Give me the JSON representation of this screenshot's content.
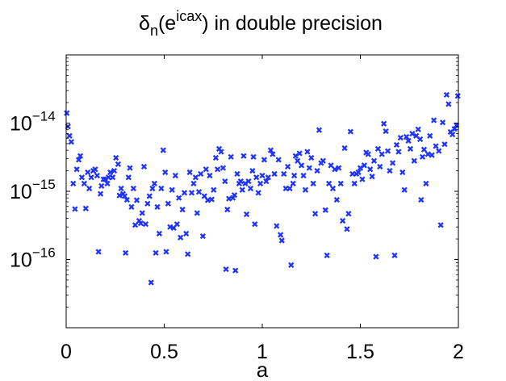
{
  "chart_data": {
    "type": "scatter",
    "title": {
      "base": "δ",
      "base_sub": "n",
      "mid": "(e",
      "mid_sup": "icax",
      "tail": ") in double precision"
    },
    "xlabel": "a",
    "ylabel": "",
    "xlim": [
      0,
      2
    ],
    "ylim": [
      1e-17,
      1e-13
    ],
    "y_scale": "log",
    "grid": false,
    "legend": "none",
    "x_ticks": [
      {
        "value": 0,
        "label": "0"
      },
      {
        "value": 0.5,
        "label": "0.5"
      },
      {
        "value": 1,
        "label": "1"
      },
      {
        "value": 1.5,
        "label": "1.5"
      },
      {
        "value": 2,
        "label": "2"
      }
    ],
    "y_ticks": [
      {
        "value": 1e-14,
        "mantissa": "10",
        "exponent": "−14"
      },
      {
        "value": 1e-15,
        "mantissa": "10",
        "exponent": "−15"
      },
      {
        "value": 1e-16,
        "mantissa": "10",
        "exponent": "−16"
      }
    ],
    "marker": "x",
    "color": "#1f33ff",
    "points": [
      [
        0.003,
        1.4e-14
      ],
      [
        0.009,
        8.9e-15
      ],
      [
        0.017,
        6.5e-15
      ],
      [
        0.026,
        5.3e-15
      ],
      [
        0.036,
        1.3e-15
      ],
      [
        0.045,
        5.5e-16
      ],
      [
        0.054,
        2.1e-15
      ],
      [
        0.064,
        2.9e-15
      ],
      [
        0.072,
        3.3e-15
      ],
      [
        0.08,
        1.6e-15
      ],
      [
        0.092,
        1.3e-15
      ],
      [
        0.1,
        5.6e-16
      ],
      [
        0.11,
        1.9e-15
      ],
      [
        0.118,
        1.1e-15
      ],
      [
        0.128,
        1.6e-15
      ],
      [
        0.138,
        2e-15
      ],
      [
        0.148,
        2.1e-15
      ],
      [
        0.158,
        1.7e-15
      ],
      [
        0.165,
        1.3e-16
      ],
      [
        0.175,
        9.2e-16
      ],
      [
        0.18,
        1.2e-15
      ],
      [
        0.19,
        1.5e-15
      ],
      [
        0.2,
        1.5e-15
      ],
      [
        0.21,
        1.3e-15
      ],
      [
        0.216,
        1.6e-15
      ],
      [
        0.225,
        1.9e-15
      ],
      [
        0.237,
        1.6e-15
      ],
      [
        0.245,
        2e-15
      ],
      [
        0.254,
        3.1e-15
      ],
      [
        0.265,
        2.5e-15
      ],
      [
        0.272,
        8.7e-16
      ],
      [
        0.28,
        1.1e-15
      ],
      [
        0.29,
        9.2e-16
      ],
      [
        0.298,
        8.5e-16
      ],
      [
        0.303,
        1.25e-16
      ],
      [
        0.31,
        7.5e-16
      ],
      [
        0.318,
        1.6e-15
      ],
      [
        0.325,
        2.2e-15
      ],
      [
        0.333,
        5.9e-16
      ],
      [
        0.343,
        1.1e-15
      ],
      [
        0.352,
        3.2e-16
      ],
      [
        0.36,
        7.4e-16
      ],
      [
        0.372,
        3.7e-16
      ],
      [
        0.38,
        3.4e-16
      ],
      [
        0.388,
        4.8e-16
      ],
      [
        0.397,
        2.3e-15
      ],
      [
        0.405,
        3.3e-16
      ],
      [
        0.415,
        6.6e-16
      ],
      [
        0.425,
        8.5e-16
      ],
      [
        0.433,
        4.6e-17
      ],
      [
        0.44,
        1.1e-15
      ],
      [
        0.45,
        1.3e-15
      ],
      [
        0.457,
        1.25e-16
      ],
      [
        0.465,
        5.9e-16
      ],
      [
        0.475,
        2.4e-16
      ],
      [
        0.485,
        1.1e-15
      ],
      [
        0.495,
        4e-15
      ],
      [
        0.505,
        1.9e-15
      ],
      [
        0.51,
        1.3e-16
      ],
      [
        0.52,
        6.6e-16
      ],
      [
        0.53,
        3e-16
      ],
      [
        0.54,
        1.05e-15
      ],
      [
        0.548,
        2.9e-16
      ],
      [
        0.557,
        1.7e-15
      ],
      [
        0.565,
        3.3e-16
      ],
      [
        0.575,
        8e-16
      ],
      [
        0.583,
        2.1e-16
      ],
      [
        0.593,
        5.4e-16
      ],
      [
        0.603,
        9.5e-16
      ],
      [
        0.612,
        2.4e-16
      ],
      [
        0.62,
        1.2e-16
      ],
      [
        0.63,
        1.9e-15
      ],
      [
        0.64,
        9.5e-16
      ],
      [
        0.65,
        1.3e-15
      ],
      [
        0.66,
        1.6e-15
      ],
      [
        0.668,
        4.8e-16
      ],
      [
        0.677,
        9.8e-16
      ],
      [
        0.686,
        1.8e-15
      ],
      [
        0.697,
        2.2e-16
      ],
      [
        0.705,
        8.5e-16
      ],
      [
        0.713,
        2.1e-15
      ],
      [
        0.722,
        7.4e-16
      ],
      [
        0.732,
        1.7e-15
      ],
      [
        0.742,
        7.6e-16
      ],
      [
        0.752,
        1.05e-15
      ],
      [
        0.763,
        3.1e-15
      ],
      [
        0.772,
        2.1e-15
      ],
      [
        0.78,
        4.2e-15
      ],
      [
        0.79,
        3.8e-15
      ],
      [
        0.8,
        2.2e-15
      ],
      [
        0.81,
        1.4e-15
      ],
      [
        0.815,
        7.2e-17
      ],
      [
        0.822,
        5.4e-16
      ],
      [
        0.83,
        7.8e-16
      ],
      [
        0.84,
        3.2e-15
      ],
      [
        0.85,
        8e-16
      ],
      [
        0.858,
        8.8e-16
      ],
      [
        0.863,
        6.9e-17
      ],
      [
        0.872,
        1.8e-15
      ],
      [
        0.882,
        1.3e-15
      ],
      [
        0.89,
        1.4e-15
      ],
      [
        0.898,
        1.05e-15
      ],
      [
        0.905,
        3.3e-15
      ],
      [
        0.913,
        1.3e-15
      ],
      [
        0.92,
        4.6e-16
      ],
      [
        0.93,
        1.4e-15
      ],
      [
        0.94,
        1.1e-15
      ],
      [
        0.95,
        2e-15
      ],
      [
        0.955,
        3.2e-15
      ],
      [
        0.962,
        3.3e-16
      ],
      [
        0.97,
        1.6e-15
      ],
      [
        0.98,
        9.5e-16
      ],
      [
        0.99,
        1.3e-15
      ],
      [
        1,
        1.7e-15
      ],
      [
        1.01,
        2.9e-15
      ],
      [
        1.02,
        1.4e-15
      ],
      [
        1.03,
        1.6e-15
      ],
      [
        1.043,
        4e-15
      ],
      [
        1.053,
        3.5e-15
      ],
      [
        1.062,
        1.8e-15
      ],
      [
        1.073,
        3.1e-16
      ],
      [
        1.083,
        2.9e-15
      ],
      [
        1.093,
        2.3e-16
      ],
      [
        1.1,
        1.9e-16
      ],
      [
        1.11,
        1.8e-15
      ],
      [
        1.12,
        1.1e-15
      ],
      [
        1.13,
        2.3e-15
      ],
      [
        1.14,
        1.1e-15
      ],
      [
        1.147,
        8.3e-17
      ],
      [
        1.157,
        1.3e-15
      ],
      [
        1.163,
        1.7e-15
      ],
      [
        1.17,
        3.3e-15
      ],
      [
        1.18,
        2.8e-15
      ],
      [
        1.19,
        3.6e-15
      ],
      [
        1.2,
        2.4e-15
      ],
      [
        1.21,
        1.7e-15
      ],
      [
        1.22,
        1.05e-15
      ],
      [
        1.23,
        3.8e-15
      ],
      [
        1.24,
        2.2e-15
      ],
      [
        1.25,
        3.1e-15
      ],
      [
        1.26,
        1.3e-15
      ],
      [
        1.27,
        4.7e-16
      ],
      [
        1.28,
        2e-15
      ],
      [
        1.29,
        7.9e-15
      ],
      [
        1.3,
        2.6e-15
      ],
      [
        1.31,
        2.8e-15
      ],
      [
        1.322,
        5.3e-16
      ],
      [
        1.33,
        1.15e-16
      ],
      [
        1.34,
        1.3e-15
      ],
      [
        1.35,
        2.4e-15
      ],
      [
        1.36,
        1.1e-15
      ],
      [
        1.37,
        2.1e-15
      ],
      [
        1.38,
        7.5e-16
      ],
      [
        1.39,
        2.2e-15
      ],
      [
        1.4,
        1.3e-15
      ],
      [
        1.41,
        3.7e-16
      ],
      [
        1.42,
        4.3e-15
      ],
      [
        1.432,
        2.8e-16
      ],
      [
        1.44,
        4.7e-16
      ],
      [
        1.45,
        7.5e-15
      ],
      [
        1.46,
        1.8e-15
      ],
      [
        1.47,
        1.3e-15
      ],
      [
        1.48,
        1.8e-15
      ],
      [
        1.49,
        1.9e-15
      ],
      [
        1.5,
        2.2e-15
      ],
      [
        1.51,
        1.5e-15
      ],
      [
        1.52,
        2.4e-15
      ],
      [
        1.53,
        3.7e-15
      ],
      [
        1.54,
        3.5e-15
      ],
      [
        1.55,
        2.1e-15
      ],
      [
        1.56,
        1.65e-15
      ],
      [
        1.57,
        2.8e-15
      ],
      [
        1.58,
        1.1e-16
      ],
      [
        1.59,
        4.2e-15
      ],
      [
        1.6,
        2.3e-15
      ],
      [
        1.61,
        3.5e-15
      ],
      [
        1.62,
        9.8e-15
      ],
      [
        1.63,
        7.6e-15
      ],
      [
        1.64,
        3.9e-15
      ],
      [
        1.65,
        2e-15
      ],
      [
        1.665,
        2.6e-15
      ],
      [
        1.675,
        1.15e-16
      ],
      [
        1.685,
        4.8e-15
      ],
      [
        1.695,
        3.8e-15
      ],
      [
        1.705,
        6.1e-15
      ],
      [
        1.715,
        1.9e-15
      ],
      [
        1.725,
        1.05e-15
      ],
      [
        1.735,
        6.3e-15
      ],
      [
        1.745,
        5.5e-15
      ],
      [
        1.755,
        4.2e-15
      ],
      [
        1.765,
        7e-15
      ],
      [
        1.775,
        2.8e-15
      ],
      [
        1.785,
        6.5e-15
      ],
      [
        1.795,
        8.1e-15
      ],
      [
        1.805,
        5.8e-15
      ],
      [
        1.81,
        7.5e-16
      ],
      [
        1.817,
        3.2e-15
      ],
      [
        1.825,
        4.1e-15
      ],
      [
        1.835,
        1.3e-15
      ],
      [
        1.845,
        3.5e-15
      ],
      [
        1.855,
        6.5e-15
      ],
      [
        1.865,
        3.4e-15
      ],
      [
        1.875,
        1.1e-14
      ],
      [
        1.885,
        4.6e-15
      ],
      [
        1.9,
        3.9e-15
      ],
      [
        1.91,
        3.2e-16
      ],
      [
        1.92,
        1.02e-14
      ],
      [
        1.93,
        4.9e-15
      ],
      [
        1.94,
        2.6e-14
      ],
      [
        1.95,
        1.9e-14
      ],
      [
        1.96,
        7.4e-15
      ],
      [
        1.97,
        6.8e-15
      ],
      [
        1.98,
        8.2e-15
      ],
      [
        1.99,
        9.3e-15
      ],
      [
        1.997,
        2.5e-14
      ]
    ]
  }
}
